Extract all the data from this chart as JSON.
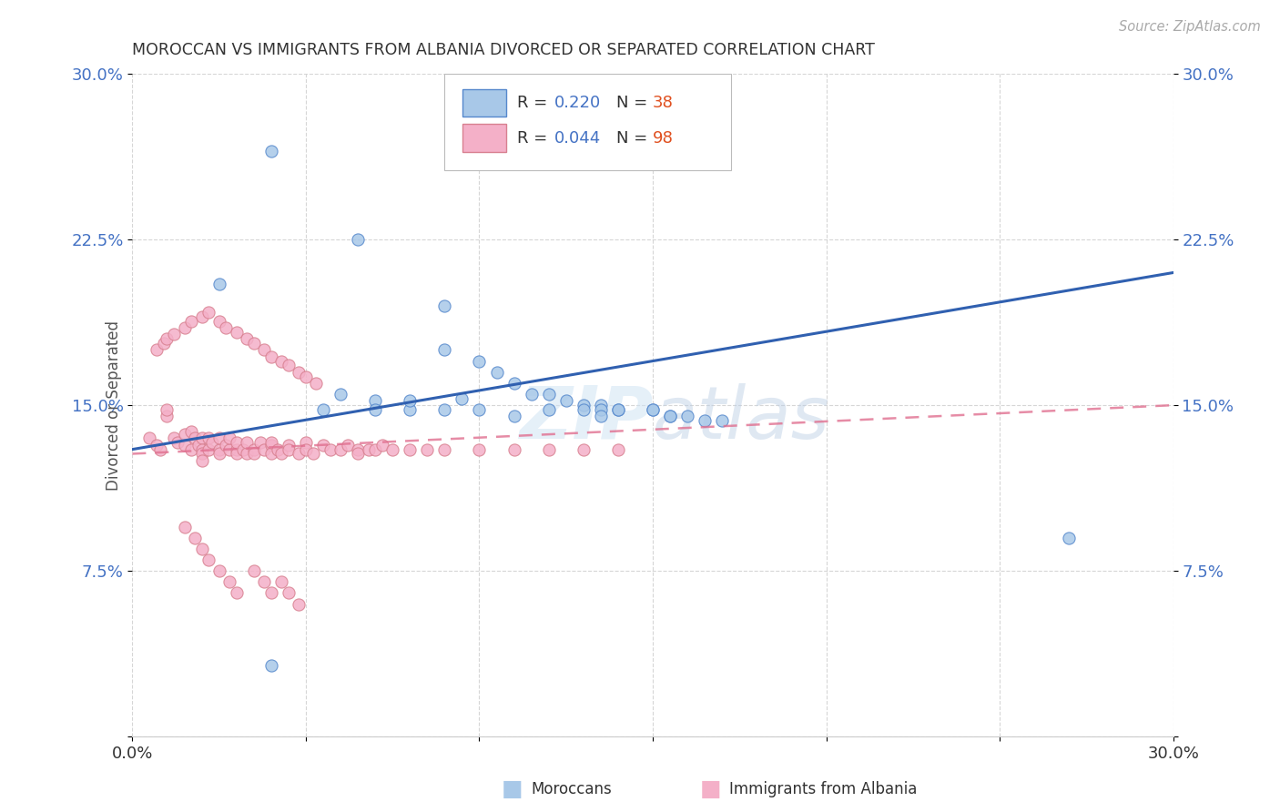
{
  "title": "MOROCCAN VS IMMIGRANTS FROM ALBANIA DIVORCED OR SEPARATED CORRELATION CHART",
  "source": "Source: ZipAtlas.com",
  "ylabel": "Divorced or Separated",
  "xlim": [
    0.0,
    0.3
  ],
  "ylim": [
    0.0,
    0.3
  ],
  "moroccan_color": "#a8c8e8",
  "albania_color": "#f4b0c8",
  "moroccan_line_color": "#3060b0",
  "albania_line_color": "#e07090",
  "watermark": "ZIPatlas",
  "moroccan_x": [
    0.025,
    0.04,
    0.065,
    0.09,
    0.09,
    0.1,
    0.105,
    0.11,
    0.115,
    0.12,
    0.125,
    0.13,
    0.135,
    0.135,
    0.14,
    0.15,
    0.155,
    0.155,
    0.16,
    0.165,
    0.17,
    0.06,
    0.07,
    0.08,
    0.09,
    0.1,
    0.11,
    0.12,
    0.27,
    0.14,
    0.08,
    0.095,
    0.055,
    0.13,
    0.135,
    0.07,
    0.04,
    0.15
  ],
  "moroccan_y": [
    0.205,
    0.265,
    0.225,
    0.195,
    0.175,
    0.17,
    0.165,
    0.16,
    0.155,
    0.155,
    0.152,
    0.15,
    0.15,
    0.148,
    0.148,
    0.148,
    0.145,
    0.145,
    0.145,
    0.143,
    0.143,
    0.155,
    0.152,
    0.148,
    0.148,
    0.148,
    0.145,
    0.148,
    0.09,
    0.148,
    0.152,
    0.153,
    0.148,
    0.148,
    0.145,
    0.148,
    0.032,
    0.148
  ],
  "albania_x": [
    0.005,
    0.007,
    0.008,
    0.01,
    0.01,
    0.012,
    0.013,
    0.015,
    0.015,
    0.017,
    0.017,
    0.018,
    0.019,
    0.02,
    0.02,
    0.02,
    0.02,
    0.022,
    0.022,
    0.023,
    0.025,
    0.025,
    0.025,
    0.027,
    0.028,
    0.028,
    0.03,
    0.03,
    0.03,
    0.032,
    0.033,
    0.033,
    0.035,
    0.035,
    0.037,
    0.038,
    0.04,
    0.04,
    0.04,
    0.042,
    0.043,
    0.045,
    0.045,
    0.048,
    0.05,
    0.05,
    0.052,
    0.055,
    0.057,
    0.06,
    0.062,
    0.065,
    0.065,
    0.068,
    0.07,
    0.072,
    0.075,
    0.08,
    0.085,
    0.09,
    0.1,
    0.11,
    0.12,
    0.13,
    0.14,
    0.015,
    0.018,
    0.02,
    0.022,
    0.025,
    0.028,
    0.03,
    0.035,
    0.038,
    0.04,
    0.043,
    0.045,
    0.048,
    0.007,
    0.009,
    0.01,
    0.012,
    0.015,
    0.017,
    0.02,
    0.022,
    0.025,
    0.027,
    0.03,
    0.033,
    0.035,
    0.038,
    0.04,
    0.043,
    0.045,
    0.048,
    0.05,
    0.053
  ],
  "albania_y": [
    0.135,
    0.132,
    0.13,
    0.145,
    0.148,
    0.135,
    0.133,
    0.137,
    0.132,
    0.138,
    0.13,
    0.135,
    0.132,
    0.135,
    0.13,
    0.128,
    0.125,
    0.135,
    0.13,
    0.133,
    0.13,
    0.135,
    0.128,
    0.132,
    0.13,
    0.135,
    0.13,
    0.128,
    0.133,
    0.13,
    0.128,
    0.133,
    0.13,
    0.128,
    0.133,
    0.13,
    0.132,
    0.128,
    0.133,
    0.13,
    0.128,
    0.132,
    0.13,
    0.128,
    0.133,
    0.13,
    0.128,
    0.132,
    0.13,
    0.13,
    0.132,
    0.13,
    0.128,
    0.13,
    0.13,
    0.132,
    0.13,
    0.13,
    0.13,
    0.13,
    0.13,
    0.13,
    0.13,
    0.13,
    0.13,
    0.095,
    0.09,
    0.085,
    0.08,
    0.075,
    0.07,
    0.065,
    0.075,
    0.07,
    0.065,
    0.07,
    0.065,
    0.06,
    0.175,
    0.178,
    0.18,
    0.182,
    0.185,
    0.188,
    0.19,
    0.192,
    0.188,
    0.185,
    0.183,
    0.18,
    0.178,
    0.175,
    0.172,
    0.17,
    0.168,
    0.165,
    0.163,
    0.16
  ]
}
